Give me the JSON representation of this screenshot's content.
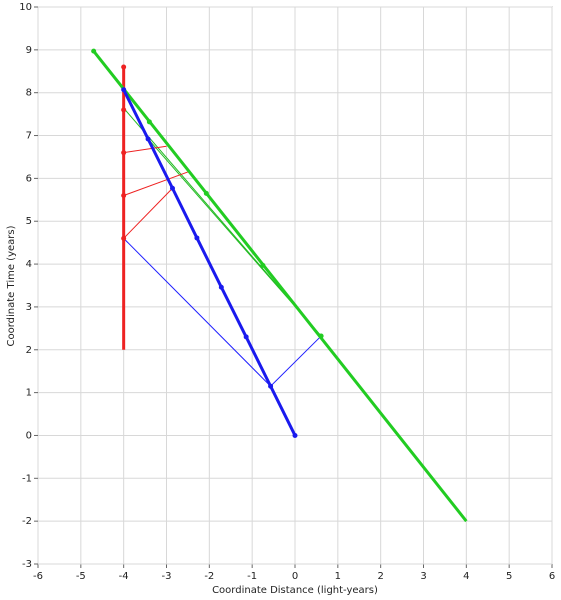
{
  "chart_data": {
    "type": "line",
    "xlabel": "Coordinate Distance (light-years)",
    "ylabel": "Coordinate Time (years)",
    "xlim": [
      -6,
      6
    ],
    "ylim": [
      -3,
      10
    ],
    "xticks": [
      -6,
      -5,
      -4,
      -3,
      -2,
      -1,
      0,
      1,
      2,
      3,
      4,
      5,
      6
    ],
    "yticks": [
      -3,
      -2,
      -1,
      0,
      1,
      2,
      3,
      4,
      5,
      6,
      7,
      8,
      9,
      10
    ],
    "grid": true,
    "series": [
      {
        "color": "#2020ff",
        "width": 1,
        "markers": false,
        "x": [
          -4,
          -0.57,
          0.61
        ],
        "y": [
          4.6,
          1.15,
          2.32
        ]
      },
      {
        "color": "#22bb22",
        "width": 1,
        "markers": false,
        "x": [
          0.61,
          -4
        ],
        "y": [
          2.32,
          7.64
        ]
      },
      {
        "color": "#22bb22",
        "width": 1,
        "markers": false,
        "x": [
          0.61,
          -3.43
        ],
        "y": [
          2.32,
          6.92
        ]
      },
      {
        "color": "#ee2222",
        "width": 1,
        "markers": false,
        "x": [
          -4,
          -2.86
        ],
        "y": [
          4.6,
          5.77
        ]
      },
      {
        "color": "#ee2222",
        "width": 1,
        "markers": false,
        "x": [
          -4,
          -2.5
        ],
        "y": [
          5.6,
          6.15
        ]
      },
      {
        "color": "#ee2222",
        "width": 1,
        "markers": false,
        "x": [
          -4,
          -3.0
        ],
        "y": [
          6.6,
          6.75
        ]
      },
      {
        "color": "#ee2222",
        "width": 3,
        "markers": false,
        "x": [
          -4,
          -4
        ],
        "y": [
          2,
          8.6
        ]
      },
      {
        "color": "#ee2222",
        "width": 0,
        "markers": true,
        "x": [
          -4,
          -4,
          -4,
          -4,
          -4
        ],
        "y": [
          4.6,
          5.6,
          6.6,
          7.6,
          8.6
        ]
      },
      {
        "color": "#22cc22",
        "width": 3,
        "markers": false,
        "x": [
          4,
          -4.7
        ],
        "y": [
          -2,
          8.97
        ]
      },
      {
        "color": "#22cc22",
        "width": 0,
        "markers": true,
        "x": [
          0.61,
          -0.75,
          -2.07,
          -3.4,
          -4.7
        ],
        "y": [
          2.32,
          3.97,
          5.65,
          7.32,
          8.97
        ]
      },
      {
        "color": "#1a1aee",
        "width": 3,
        "markers": true,
        "x": [
          0,
          -0.57,
          -1.14,
          -1.72,
          -2.29,
          -2.86,
          -3.43,
          -4
        ],
        "y": [
          0,
          1.15,
          2.3,
          3.46,
          4.61,
          5.77,
          6.92,
          8.07
        ]
      }
    ]
  }
}
